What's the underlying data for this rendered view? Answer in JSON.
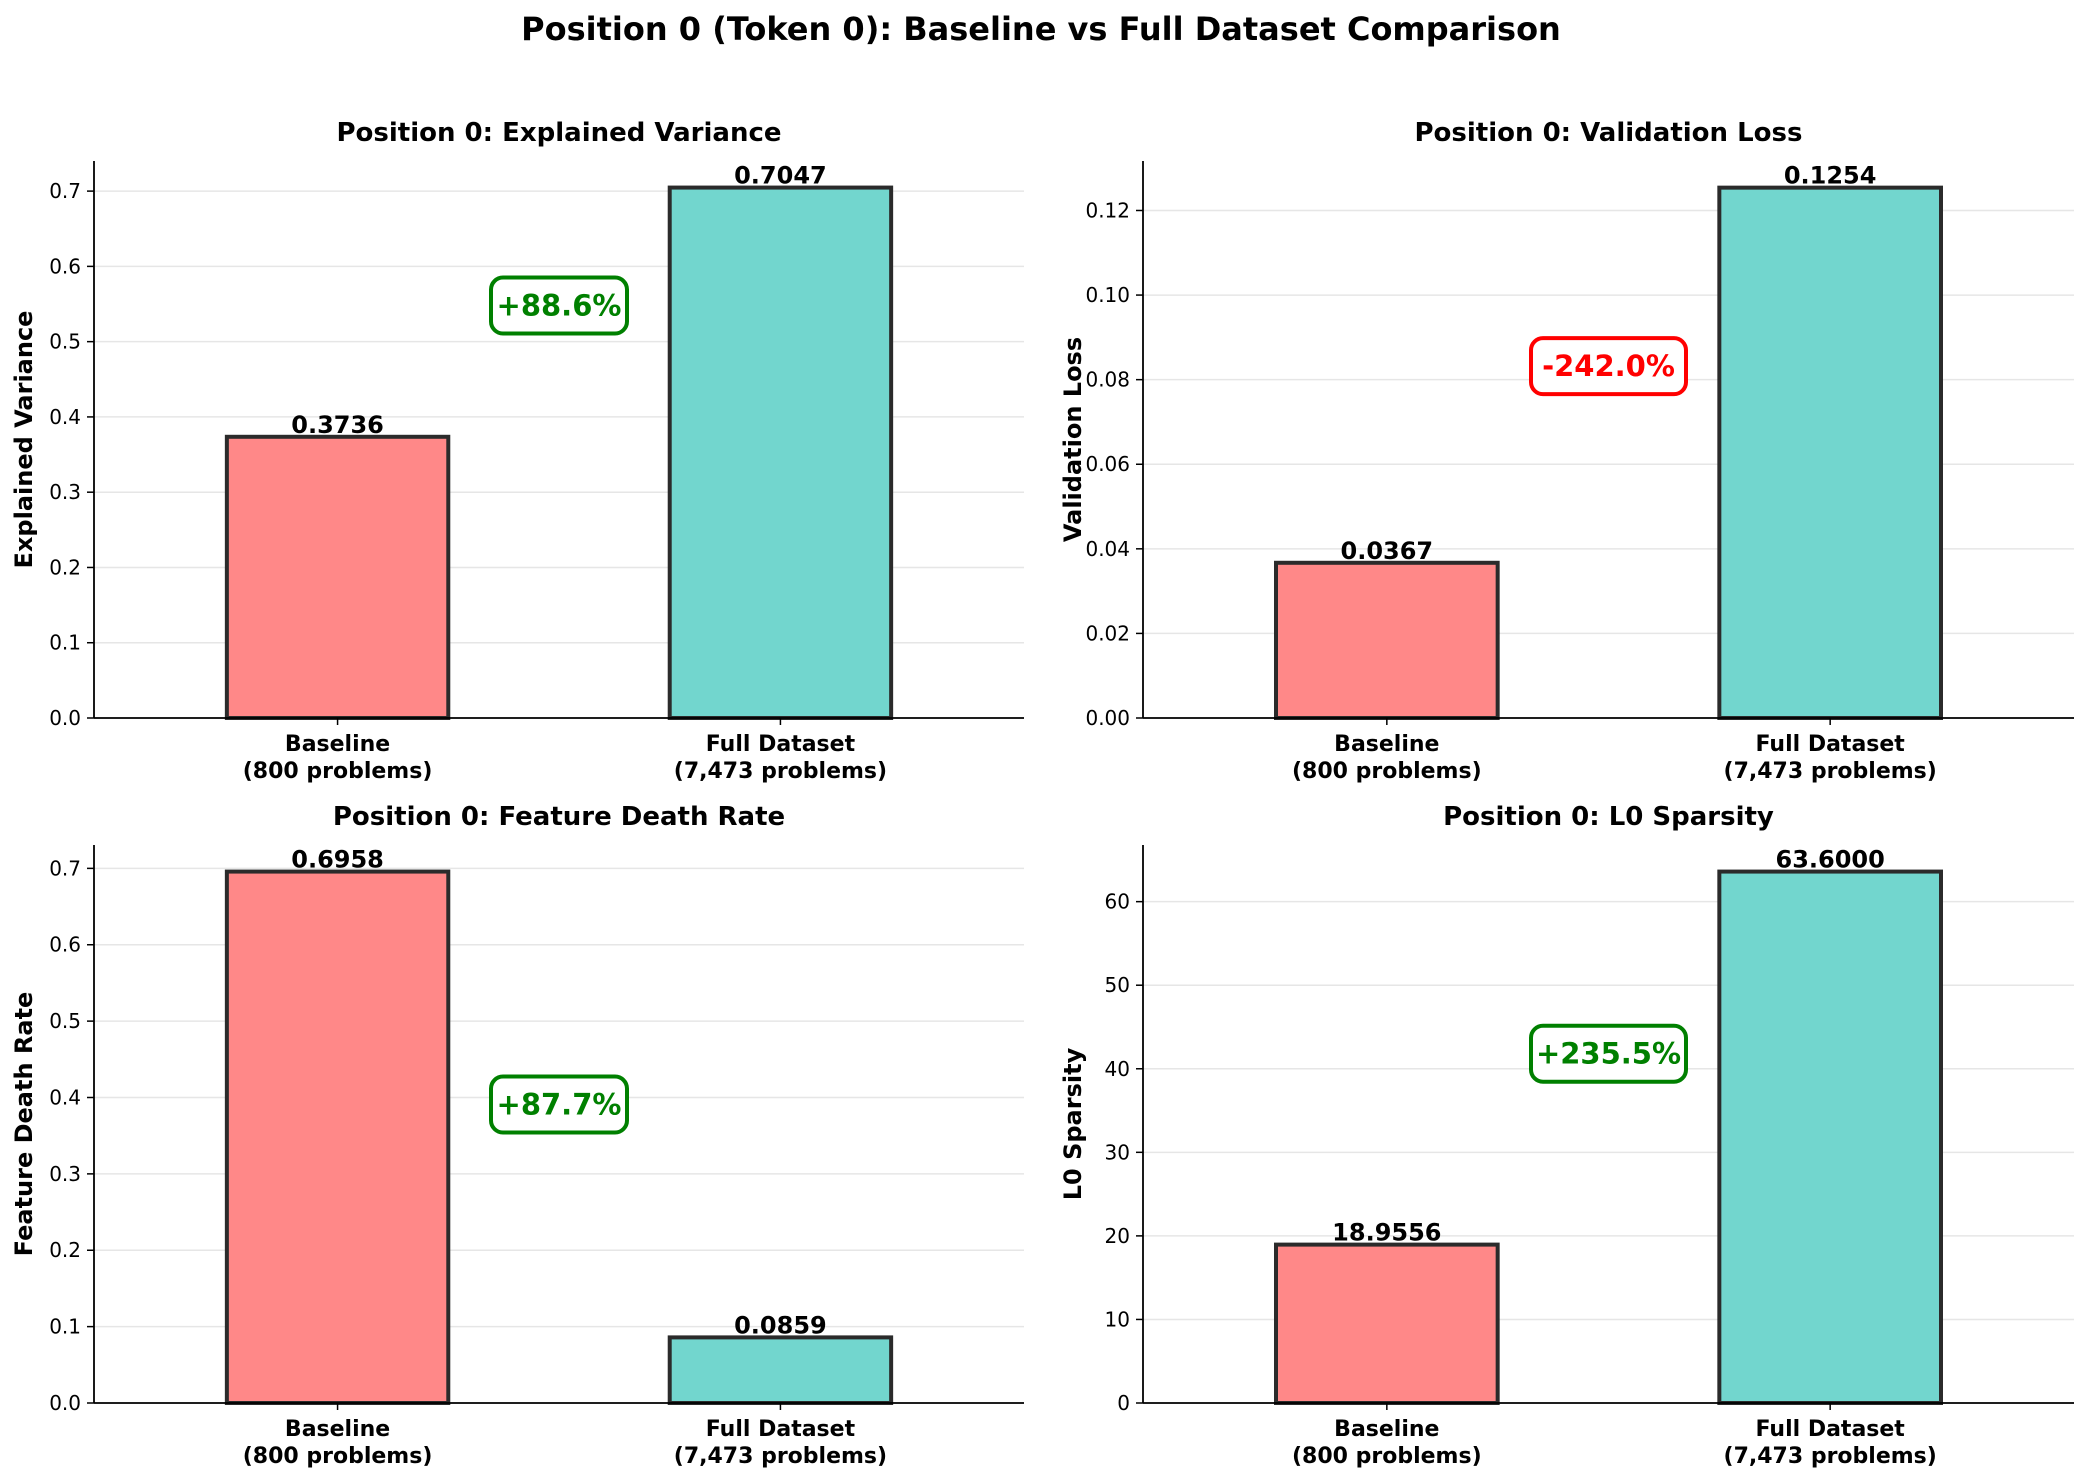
{
  "figure": {
    "title": "Position 0 (Token 0): Baseline vs Full Dataset Comparison"
  },
  "colors": {
    "baseline": "#ff8888",
    "full_dataset": "#72d6ce",
    "bar_edge": "#2b2b2b",
    "positive": "#008000",
    "negative": "#ff0000",
    "grid": "#e6e6e6"
  },
  "chart_data": [
    {
      "type": "bar",
      "title": "Position 0: Explained Variance",
      "xlabel": "",
      "ylabel": "Explained Variance",
      "categories": [
        "Baseline\n(800 problems)",
        "Full Dataset\n(7,473 problems)"
      ],
      "values": [
        0.3736,
        0.7047
      ],
      "value_labels": [
        "0.3736",
        "0.7047"
      ],
      "ylim": [
        0,
        0.74
      ],
      "yticks": [
        0.0,
        0.1,
        0.2,
        0.3,
        0.4,
        0.5,
        0.6,
        0.7
      ],
      "ytick_labels": [
        "0.0",
        "0.1",
        "0.2",
        "0.3",
        "0.4",
        "0.5",
        "0.6",
        "0.7"
      ],
      "grid": true,
      "change_label": "+88.6%",
      "change_kind": "positive",
      "change_y": 0.548
    },
    {
      "type": "bar",
      "title": "Position 0: Validation Loss",
      "xlabel": "",
      "ylabel": "Validation Loss",
      "categories": [
        "Baseline\n(800 problems)",
        "Full Dataset\n(7,473 problems)"
      ],
      "values": [
        0.0367,
        0.1254
      ],
      "value_labels": [
        "0.0367",
        "0.1254"
      ],
      "ylim": [
        0,
        0.1317
      ],
      "yticks": [
        0.0,
        0.02,
        0.04,
        0.06,
        0.08,
        0.1,
        0.12
      ],
      "ytick_labels": [
        "0.00",
        "0.02",
        "0.04",
        "0.06",
        "0.08",
        "0.10",
        "0.12"
      ],
      "grid": true,
      "change_label": "-242.0%",
      "change_kind": "negative",
      "change_y": 0.0832
    },
    {
      "type": "bar",
      "title": "Position 0: Feature Death Rate",
      "xlabel": "",
      "ylabel": "Feature Death Rate",
      "categories": [
        "Baseline\n(800 problems)",
        "Full Dataset\n(7,473 problems)"
      ],
      "values": [
        0.6958,
        0.0859
      ],
      "value_labels": [
        "0.6958",
        "0.0859"
      ],
      "ylim": [
        0,
        0.7306
      ],
      "yticks": [
        0.0,
        0.1,
        0.2,
        0.3,
        0.4,
        0.5,
        0.6,
        0.7
      ],
      "ytick_labels": [
        "0.0",
        "0.1",
        "0.2",
        "0.3",
        "0.4",
        "0.5",
        "0.6",
        "0.7"
      ],
      "grid": true,
      "change_label": "+87.7%",
      "change_kind": "positive",
      "change_y": 0.3908
    },
    {
      "type": "bar",
      "title": "Position 0: L0 Sparsity",
      "xlabel": "",
      "ylabel": "L0 Sparsity",
      "categories": [
        "Baseline\n(800 problems)",
        "Full Dataset\n(7,473 problems)"
      ],
      "values": [
        18.9556,
        63.6
      ],
      "value_labels": [
        "18.9556",
        "63.6000"
      ],
      "ylim": [
        0,
        66.78
      ],
      "yticks": [
        0,
        10,
        20,
        30,
        40,
        50,
        60
      ],
      "ytick_labels": [
        "0",
        "10",
        "20",
        "30",
        "40",
        "50",
        "60"
      ],
      "grid": true,
      "change_label": "+235.5%",
      "change_kind": "positive",
      "change_y": 41.8
    }
  ]
}
